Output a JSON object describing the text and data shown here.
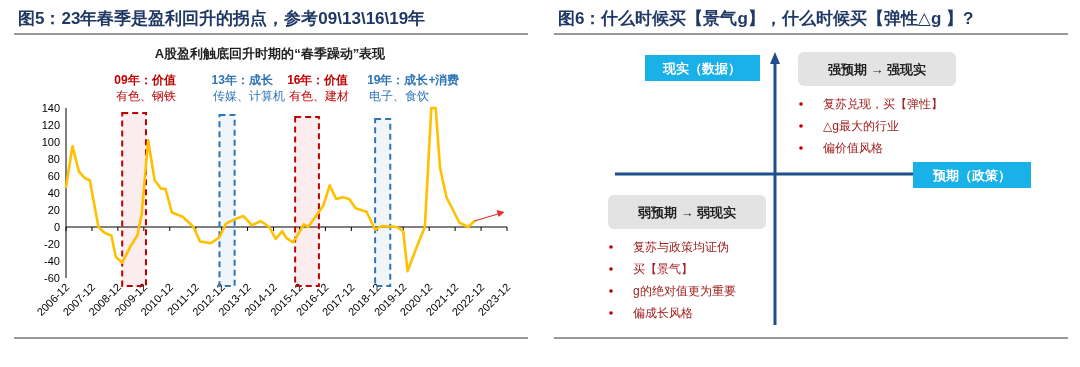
{
  "chart_data": [
    {
      "type": "line",
      "title": "图5：23年春季是盈利回升的拐点，参考09\\13\\16\\19年",
      "subtitle": "A股盈利触底回升时期的“春季躁动”表现",
      "x": [
        "2006-12",
        "2007-03",
        "2007-06",
        "2007-09",
        "2007-11",
        "2008-03",
        "2008-06",
        "2008-09",
        "2008-11",
        "2009-02",
        "2009-06",
        "2009-09",
        "2009-11",
        "2010-02",
        "2010-05",
        "2010-08",
        "2010-10",
        "2011-01",
        "2011-06",
        "2011-11",
        "2012-02",
        "2012-07",
        "2012-11",
        "2013-02",
        "2013-06",
        "2013-10",
        "2014-02",
        "2014-06",
        "2014-10",
        "2015-01",
        "2015-04",
        "2015-06",
        "2015-09",
        "2015-11",
        "2016-02",
        "2016-04",
        "2016-08",
        "2016-11",
        "2017-02",
        "2017-05",
        "2017-08",
        "2017-11",
        "2018-02",
        "2018-07",
        "2018-11",
        "2019-02",
        "2019-09",
        "2019-12",
        "2020-02",
        "2020-06",
        "2020-10",
        "2021-01",
        "2021-03",
        "2021-05",
        "2021-08",
        "2021-10",
        "2022-02",
        "2022-06",
        "2022-09"
      ],
      "series": [
        {
          "color": "#ffc000",
          "values": [
            47,
            95,
            65,
            57,
            55,
            0,
            -7,
            -10,
            -35,
            -42,
            -22,
            -10,
            15,
            102,
            55,
            45,
            45,
            17,
            12,
            0,
            -17,
            -19,
            -12,
            4,
            9,
            13,
            2,
            7,
            0,
            -14,
            -5,
            -13,
            -18,
            -10,
            3,
            0,
            14,
            25,
            49,
            33,
            35,
            33,
            22,
            18,
            -3,
            1,
            0,
            -5,
            -52,
            -25,
            0,
            140,
            140,
            70,
            35,
            25,
            5,
            0,
            7
          ]
        }
      ],
      "xlim": [
        "2006-12",
        "2023-12"
      ],
      "xticks": [
        "2006-12",
        "2007-12",
        "2008-12",
        "2009-12",
        "2010-12",
        "2011-12",
        "2012-12",
        "2013-12",
        "2014-12",
        "2015-12",
        "2016-12",
        "2017-12",
        "2018-12",
        "2019-12",
        "2020-12",
        "2021-12",
        "2022-12",
        "2023-12"
      ],
      "ylim": [
        -60,
        140
      ],
      "yticks": [
        -60,
        -40,
        -20,
        0,
        20,
        40,
        60,
        80,
        100,
        120,
        140
      ],
      "line_style": "solid",
      "marker": "none",
      "bands": [
        {
          "axis": "x",
          "from": "2009-02",
          "to": "2010-01",
          "label": "09年：价值",
          "color": "#c00000"
        },
        {
          "axis": "x",
          "from": "2012-11",
          "to": "2013-06",
          "label": "13年：成长",
          "color": "#2e75b6"
        },
        {
          "axis": "x",
          "from": "2015-10",
          "to": "2016-09",
          "label": "16年：价值",
          "color": "#c00000"
        },
        {
          "axis": "x",
          "from": "2018-11",
          "to": "2019-06",
          "label": "19年：成长+消费",
          "color": "#2e75b6"
        }
      ],
      "annotations": [
        "有色、钢铁",
        "传媒、计算机",
        "有色、建材",
        "电子、食饮"
      ]
    },
    {
      "type": "other",
      "title": "图6：什么时候买【景气g】，什么时候买【弹性△g 】?",
      "xlabel": "预期（政策）",
      "ylabel": "现实（数据）",
      "annotations": [
        "强预期 → 强现实",
        "复苏兑现，买【弹性】",
        "△g最大的行业",
        "偏价值风格",
        "弱预期 → 弱现实",
        "复苏与政策均证伪",
        "买【景气】",
        "g的绝对值更为重要",
        "偏成长风格"
      ]
    }
  ]
}
